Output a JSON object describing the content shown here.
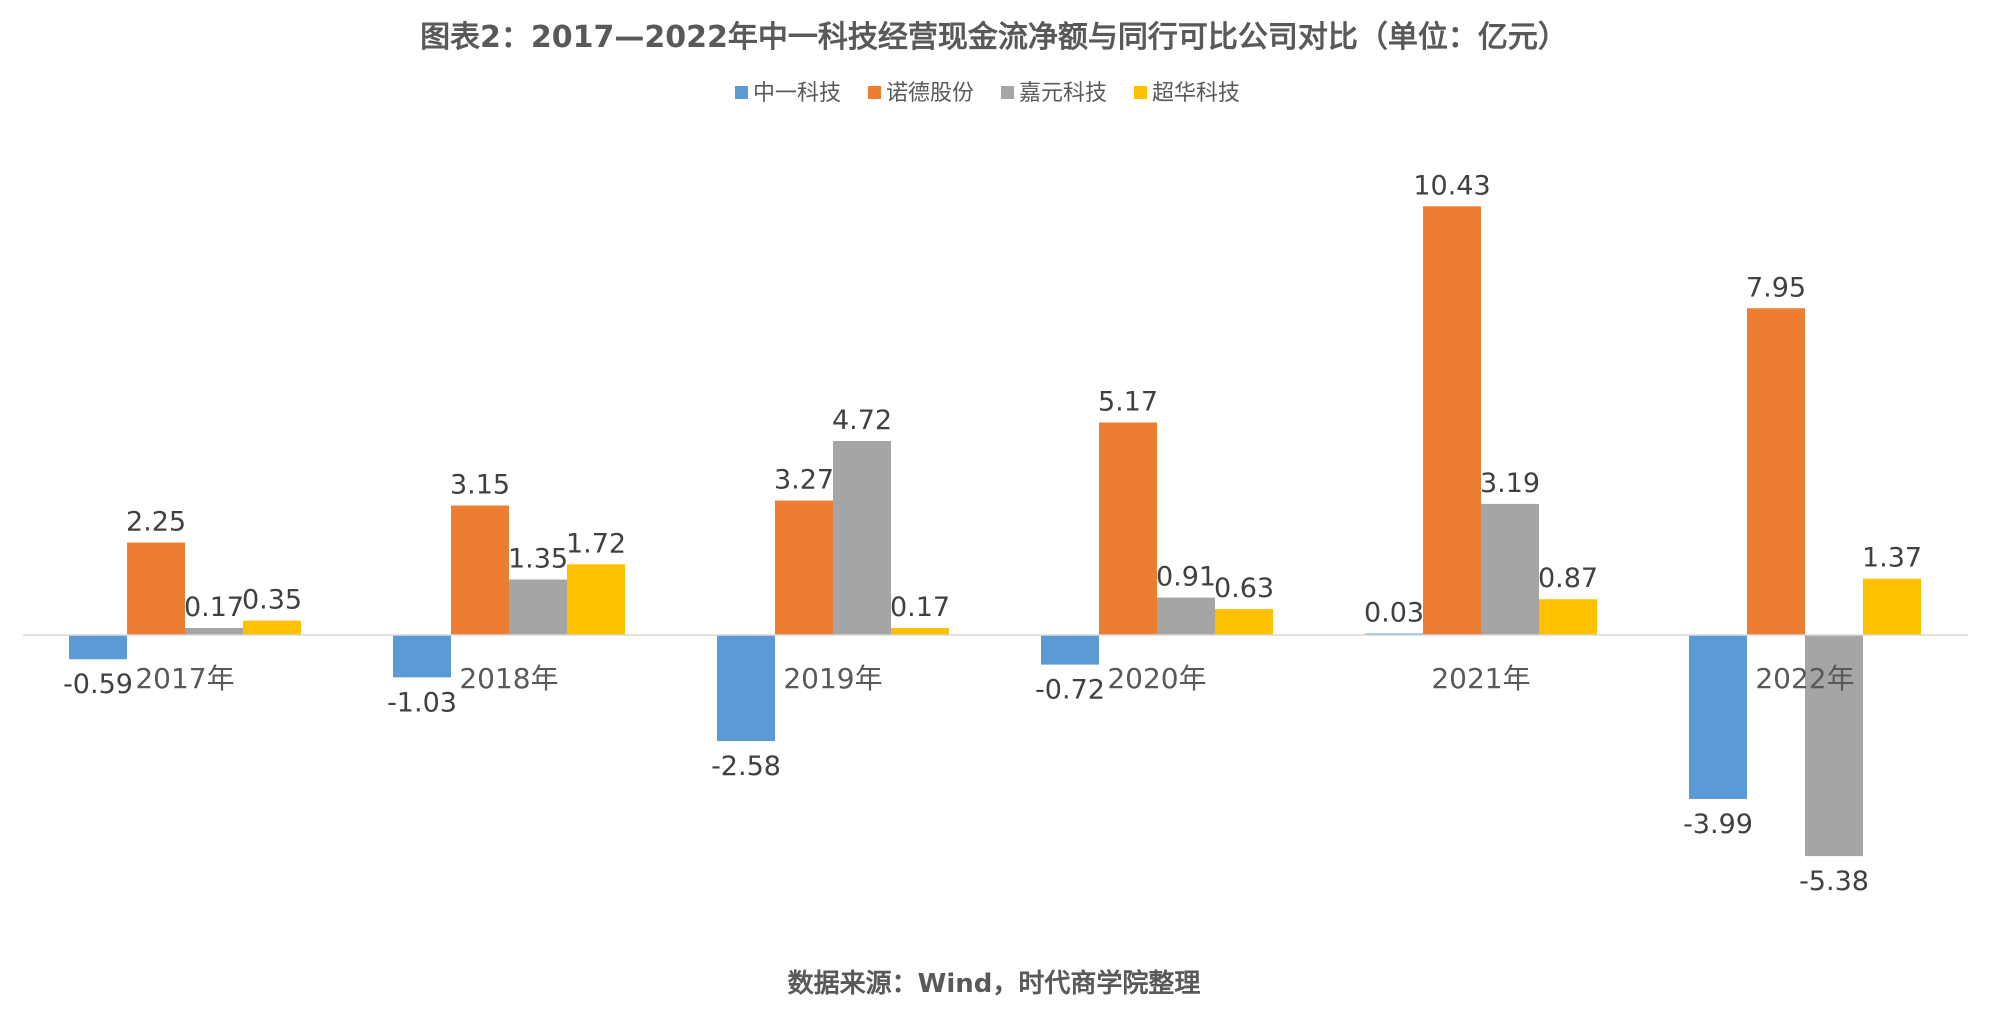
{
  "chart_data": {
    "type": "bar",
    "title": "图表2：2017—2022年中一科技经营现金流净额与同行可比公司对比（单位：亿元）",
    "source": "数据来源：Wind，时代商学院整理",
    "categories": [
      "2017年",
      "2018年",
      "2019年",
      "2020年",
      "2021年",
      "2022年"
    ],
    "series": [
      {
        "name": "中一科技",
        "color": "#5B9BD5",
        "values": [
          -0.59,
          -1.03,
          -2.58,
          -0.72,
          0.03,
          -3.99
        ]
      },
      {
        "name": "诺德股份",
        "color": "#ED7D31",
        "values": [
          2.25,
          3.15,
          3.27,
          5.17,
          10.43,
          7.95
        ]
      },
      {
        "name": "嘉元科技",
        "color": "#A5A5A5",
        "values": [
          0.17,
          1.35,
          4.72,
          0.91,
          3.19,
          -5.38
        ]
      },
      {
        "name": "超华科技",
        "color": "#FFC000",
        "values": [
          0.35,
          1.72,
          0.17,
          0.63,
          0.87,
          1.37
        ]
      }
    ],
    "legend_position": "top",
    "grid": false,
    "data_labels": true,
    "ylim": [
      -6,
      11
    ]
  }
}
